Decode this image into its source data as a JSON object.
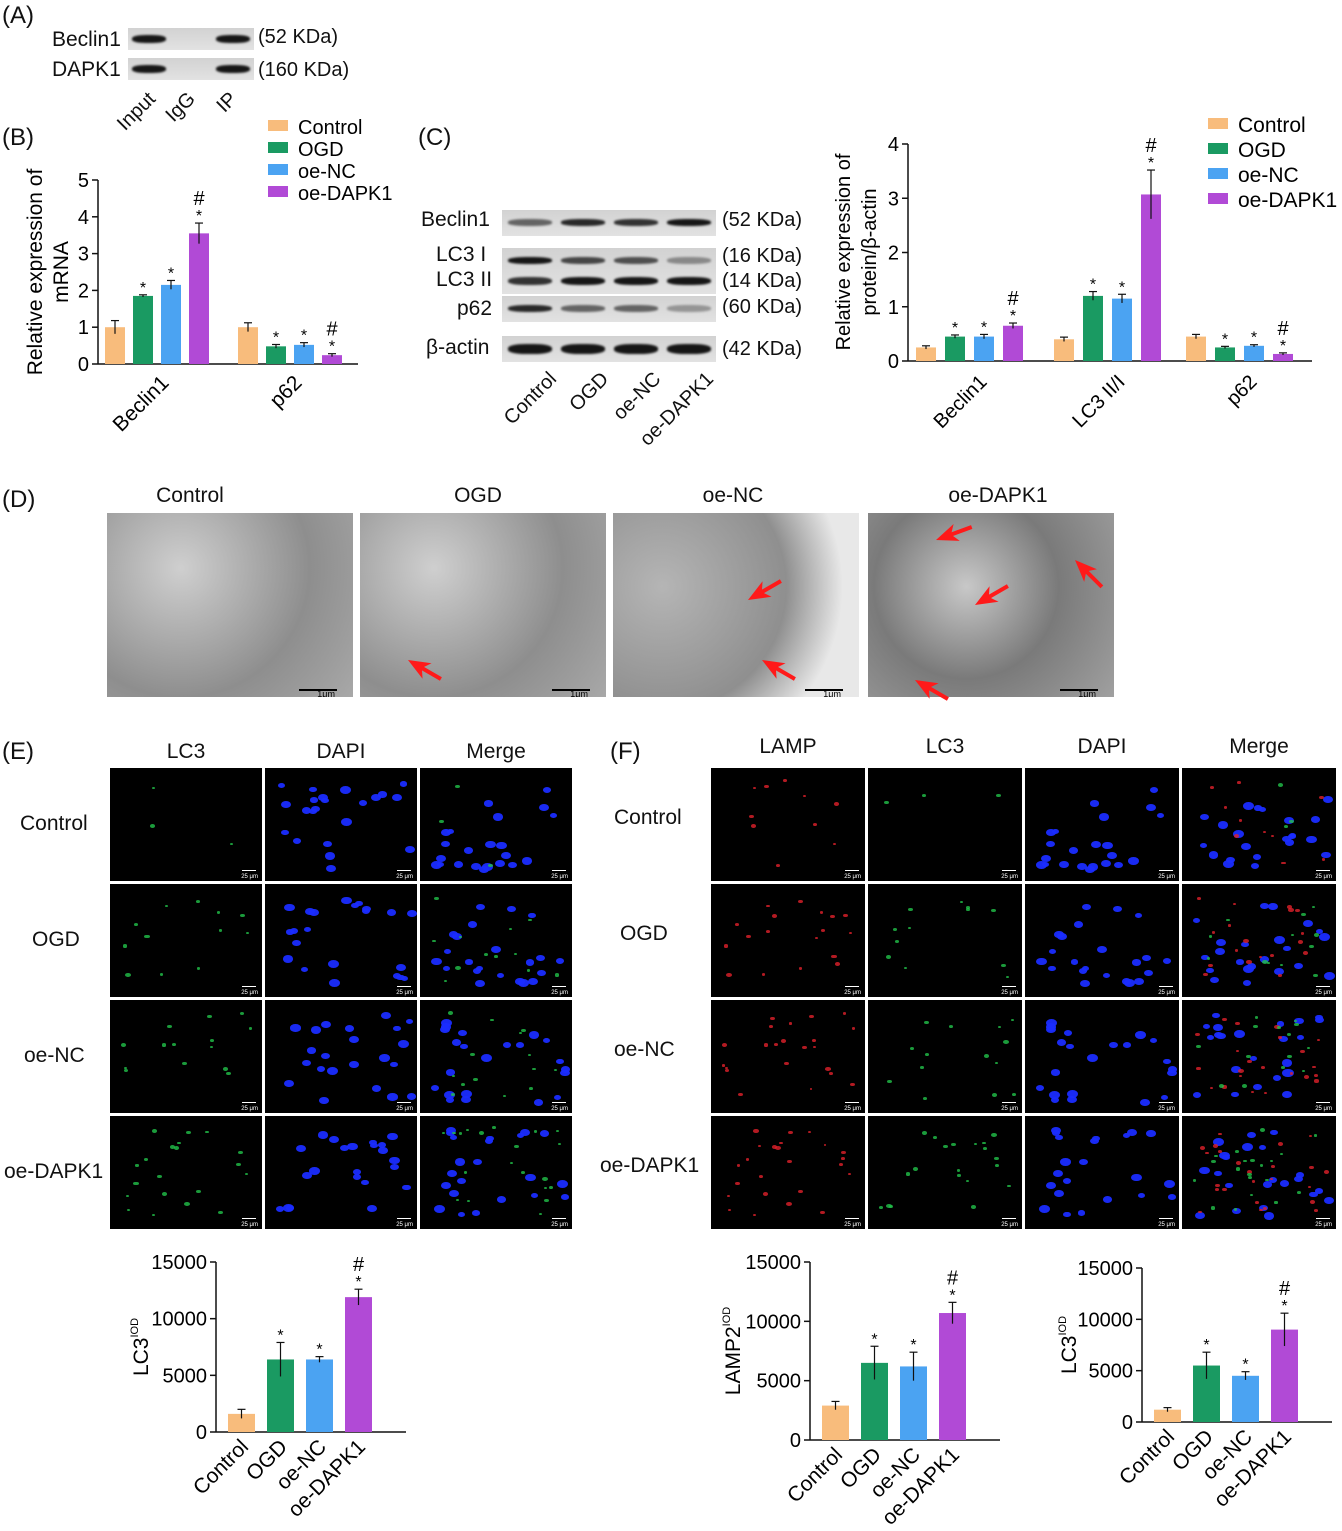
{
  "panels": {
    "a": "(A)",
    "b": "(B)",
    "c": "(C)",
    "d": "(D)",
    "e": "(E)",
    "f": "(F)"
  },
  "panelA": {
    "rows": [
      "Beclin1",
      "DAPK1"
    ],
    "kda": [
      "(52 KDa)",
      "(160 KDa)"
    ],
    "lanes": [
      "Input",
      "IgG",
      "IP"
    ]
  },
  "panelC_blot": {
    "rows": [
      "Beclin1",
      "LC3 I",
      "LC3 II",
      "p62",
      "β-actin"
    ],
    "kda": [
      "(52 KDa)",
      "(16 KDa)",
      "(14 KDa)",
      "(60 KDa)",
      "(42 KDa)"
    ],
    "lanes": [
      "Control",
      "OGD",
      "oe-NC",
      "oe-DAPK1"
    ]
  },
  "panelD": {
    "titles": [
      "Control",
      "OGD",
      "oe-NC",
      "oe-DAPK1"
    ],
    "scale": "1μm"
  },
  "panelE": {
    "cols": [
      "LC3",
      "DAPI",
      "Merge"
    ],
    "rows": [
      "Control",
      "OGD",
      "oe-NC",
      "oe-DAPK1"
    ],
    "scale": "25 μm"
  },
  "panelF": {
    "cols": [
      "LAMP",
      "LC3",
      "DAPI",
      "Merge"
    ],
    "rows": [
      "Control",
      "OGD",
      "oe-NC",
      "oe-DAPK1"
    ],
    "scale": "25 μm"
  },
  "colors": {
    "Control": "#f8bc7c",
    "OGD": "#1a9a62",
    "oe-NC": "#4ba3f2",
    "oe-DAPK1": "#b14ad6"
  },
  "chart_data": [
    {
      "id": "B",
      "type": "bar",
      "ylabel": "Relative expression of mRNA",
      "categories": [
        "Beclin1",
        "p62"
      ],
      "ylim": [
        0,
        5
      ],
      "yticks": [
        0,
        1,
        2,
        3,
        4,
        5
      ],
      "legend": [
        "Control",
        "OGD",
        "oe-NC",
        "oe-DAPK1"
      ],
      "series": [
        {
          "name": "Control",
          "values": [
            1.0,
            1.0
          ],
          "errors": [
            0.18,
            0.12
          ]
        },
        {
          "name": "OGD",
          "values": [
            1.85,
            0.48
          ],
          "errors": [
            0.03,
            0.05
          ]
        },
        {
          "name": "oe-NC",
          "values": [
            2.15,
            0.52
          ],
          "errors": [
            0.12,
            0.06
          ]
        },
        {
          "name": "oe-DAPK1",
          "values": [
            3.55,
            0.24
          ],
          "errors": [
            0.28,
            0.04
          ]
        }
      ],
      "marks": [
        [
          "",
          "*",
          "*",
          "#*"
        ],
        [
          "",
          "*",
          "*",
          "#*"
        ]
      ]
    },
    {
      "id": "C",
      "type": "bar",
      "ylabel": "Relative expression of protein/β-actin",
      "categories": [
        "Beclin1",
        "LC3 II/I",
        "p62"
      ],
      "ylim": [
        0,
        4
      ],
      "yticks": [
        0,
        1,
        2,
        3,
        4
      ],
      "legend": [
        "Control",
        "OGD",
        "oe-NC",
        "oe-DAPK1"
      ],
      "series": [
        {
          "name": "Control",
          "values": [
            0.25,
            0.4,
            0.45
          ],
          "errors": [
            0.03,
            0.04,
            0.04
          ]
        },
        {
          "name": "OGD",
          "values": [
            0.45,
            1.2,
            0.25
          ],
          "errors": [
            0.03,
            0.08,
            0.02
          ]
        },
        {
          "name": "oe-NC",
          "values": [
            0.45,
            1.15,
            0.28
          ],
          "errors": [
            0.04,
            0.08,
            0.02
          ]
        },
        {
          "name": "oe-DAPK1",
          "values": [
            0.65,
            3.07,
            0.13
          ],
          "errors": [
            0.05,
            0.45,
            0.02
          ]
        }
      ],
      "marks": [
        [
          "",
          "*",
          "*",
          "#*"
        ],
        [
          "",
          "*",
          "*",
          "#*"
        ],
        [
          "",
          "*",
          "*",
          "#*"
        ]
      ]
    },
    {
      "id": "E",
      "type": "bar",
      "ylabel": "LC3",
      "ylabel_sup": "IOD",
      "categories": [
        "Control",
        "OGD",
        "oe-NC",
        "oe-DAPK1"
      ],
      "ylim": [
        0,
        15000
      ],
      "yticks": [
        0,
        5000,
        10000,
        15000
      ],
      "values": [
        1600,
        6400,
        6400,
        11900
      ],
      "errors": [
        400,
        1500,
        250,
        700
      ],
      "marks": [
        "",
        "*",
        "*",
        "#*"
      ]
    },
    {
      "id": "F1",
      "type": "bar",
      "ylabel": "LAMP2",
      "ylabel_sup": "IOD",
      "categories": [
        "Control",
        "OGD",
        "oe-NC",
        "oe-DAPK1"
      ],
      "ylim": [
        0,
        15000
      ],
      "yticks": [
        0,
        5000,
        10000,
        15000
      ],
      "values": [
        2900,
        6500,
        6200,
        10700
      ],
      "errors": [
        350,
        1400,
        1200,
        900
      ],
      "marks": [
        "",
        "*",
        "*",
        "#*"
      ]
    },
    {
      "id": "F2",
      "type": "bar",
      "ylabel": "LC3",
      "ylabel_sup": "IOD",
      "categories": [
        "Control",
        "OGD",
        "oe-NC",
        "oe-DAPK1"
      ],
      "ylim": [
        0,
        15000
      ],
      "yticks": [
        0,
        5000,
        10000,
        15000
      ],
      "values": [
        1200,
        5500,
        4500,
        9000
      ],
      "errors": [
        200,
        1300,
        400,
        1600
      ],
      "marks": [
        "",
        "*",
        "*",
        "#*"
      ]
    }
  ]
}
